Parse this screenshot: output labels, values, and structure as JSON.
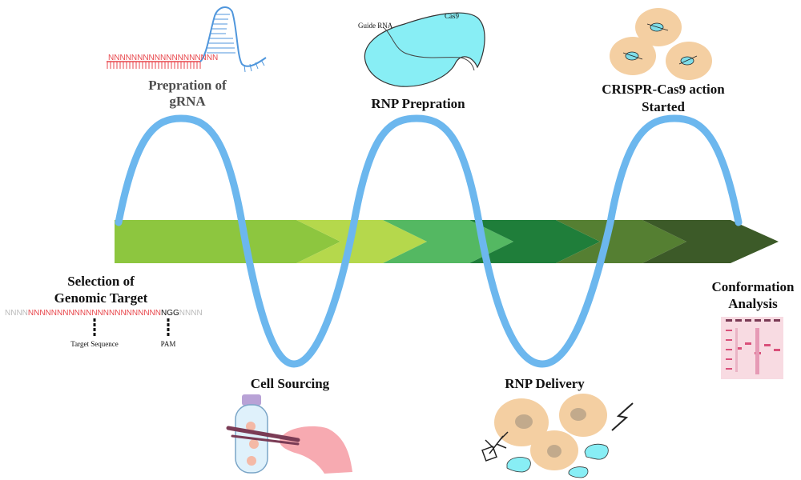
{
  "steps": {
    "gRNA": {
      "line1": "Prepration of",
      "line2": "gRNA"
    },
    "target": {
      "line1": "Selection of",
      "line2": "Genomic Target"
    },
    "rnp_prep": {
      "label": "RNP Prepration"
    },
    "cell": {
      "label": "Cell Sourcing"
    },
    "delivery": {
      "label": "RNP Delivery"
    },
    "action": {
      "line1": "CRISPR-Cas9 action",
      "line2": "Started"
    },
    "confirm": {
      "line1": "Conformation",
      "line2": "Analysis"
    }
  },
  "grna_sequence": "NNNNNNNNNNNNNNNNNNN",
  "target_seq": {
    "flank_left": "NNNN",
    "target": "NNNNNNNNNNNNNNNNNNNNNNN",
    "pam": "NGG",
    "flank_right": "NNNN",
    "target_label": "Target Sequence",
    "pam_label": "PAM"
  },
  "rnp": {
    "guide_label": "Guide RNA",
    "cas_label": "Cas9"
  },
  "colors": {
    "wave": "#6cb7ee",
    "arrow_segments": [
      "#8dc63f",
      "#b5d84c",
      "#54b862",
      "#1f7e3a",
      "#557f32",
      "#3c5a28"
    ],
    "cell": "#f4cfa2",
    "nucleus": "#c2aa8c",
    "cas9": "#88eef5",
    "grna_red": "#e8474c",
    "grna_blue": "#4f96dc",
    "glove": "#f7aab1",
    "gel": "#f8dbe2"
  }
}
